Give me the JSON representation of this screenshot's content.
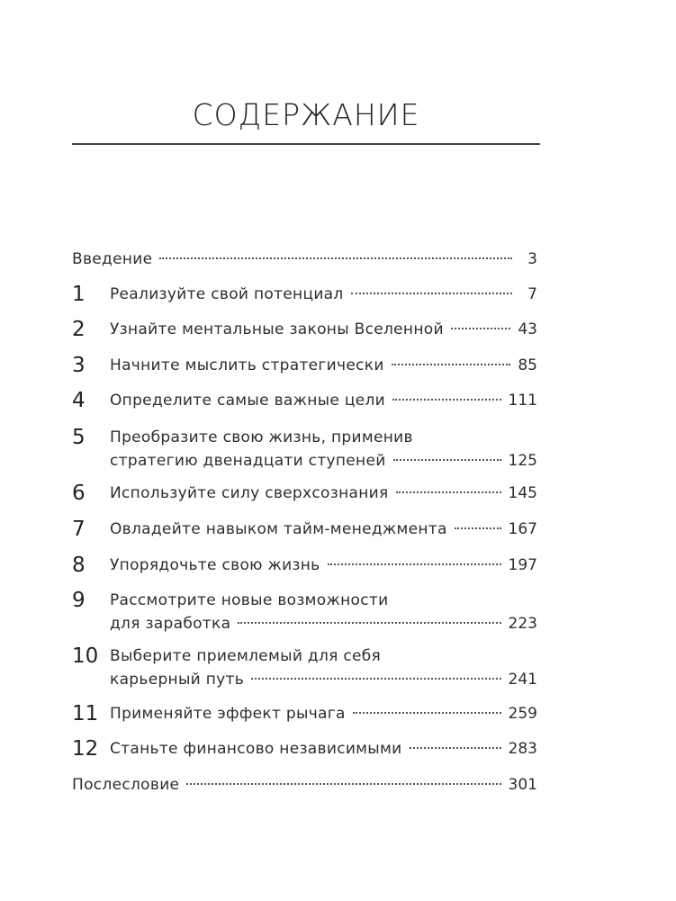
{
  "title": "СОДЕРЖАНИЕ",
  "entries": [
    {
      "num": "",
      "lines": [
        "Введение"
      ],
      "page": "3"
    },
    {
      "num": "1",
      "lines": [
        "Реализуйте свой потенциал"
      ],
      "page": "7"
    },
    {
      "num": "2",
      "lines": [
        "Узнайте ментальные законы Вселенной"
      ],
      "page": "43"
    },
    {
      "num": "3",
      "lines": [
        "Начните мыслить стратегически"
      ],
      "page": "85"
    },
    {
      "num": "4",
      "lines": [
        "Определите самые важные цели"
      ],
      "page": "111"
    },
    {
      "num": "5",
      "lines": [
        "Преобразите свою жизнь, применив",
        "стратегию двенадцати ступеней"
      ],
      "page": "125"
    },
    {
      "num": "6",
      "lines": [
        "Используйте силу сверхсознания"
      ],
      "page": "145"
    },
    {
      "num": "7",
      "lines": [
        "Овладейте навыком тайм-менеджмента"
      ],
      "page": "167"
    },
    {
      "num": "8",
      "lines": [
        "Упорядочьте свою жизнь"
      ],
      "page": "197"
    },
    {
      "num": "9",
      "lines": [
        "Рассмотрите новые возможности",
        "для заработка"
      ],
      "page": "223"
    },
    {
      "num": "10",
      "lines": [
        "Выберите приемлемый для себя",
        "карьерный путь"
      ],
      "page": "241"
    },
    {
      "num": "11",
      "lines": [
        "Применяйте эффект рычага"
      ],
      "page": "259"
    },
    {
      "num": "12",
      "lines": [
        "Станьте финансово независимыми"
      ],
      "page": "283"
    },
    {
      "num": "",
      "lines": [
        "Послесловие"
      ],
      "page": "301"
    }
  ]
}
